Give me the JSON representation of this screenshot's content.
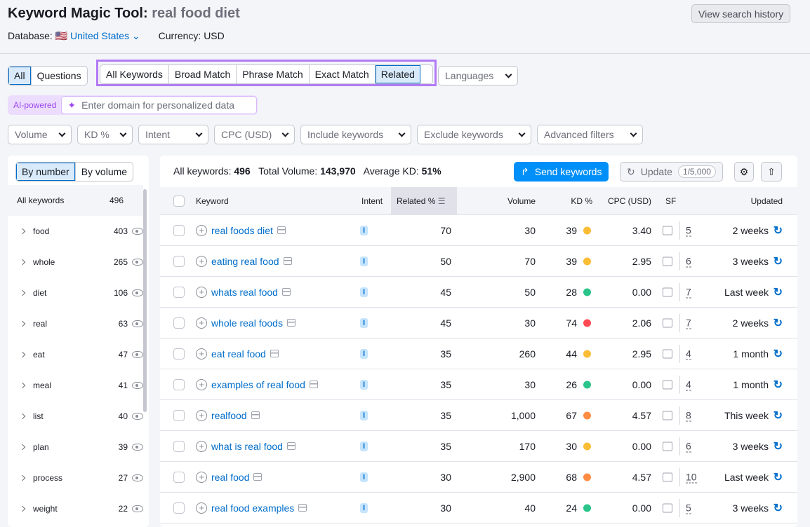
{
  "header": {
    "title": "Keyword Magic Tool:",
    "query": "real food diet",
    "history_button": "View search history",
    "database_label": "Database:",
    "database_value": "United States",
    "currency": "Currency: USD"
  },
  "match_tabs": {
    "scope": [
      "All",
      "Questions"
    ],
    "types": [
      "All Keywords",
      "Broad Match",
      "Phrase Match",
      "Exact Match",
      "Related"
    ],
    "active_scope": "All",
    "active_type": "Related",
    "languages": "Languages"
  },
  "ai": {
    "badge": "AI-powered",
    "placeholder": "Enter domain for personalized data"
  },
  "filters": [
    "Volume",
    "KD %",
    "Intent",
    "CPC (USD)",
    "Include keywords",
    "Exclude keywords",
    "Advanced filters"
  ],
  "sidebar": {
    "toggle": [
      "By number",
      "By volume"
    ],
    "active_toggle": "By number",
    "all_label": "All keywords",
    "all_count": "496",
    "groups": [
      {
        "name": "food",
        "count": "403"
      },
      {
        "name": "whole",
        "count": "265"
      },
      {
        "name": "diet",
        "count": "106"
      },
      {
        "name": "real",
        "count": "63"
      },
      {
        "name": "eat",
        "count": "47"
      },
      {
        "name": "meal",
        "count": "41"
      },
      {
        "name": "list",
        "count": "40"
      },
      {
        "name": "plan",
        "count": "39"
      },
      {
        "name": "process",
        "count": "27"
      },
      {
        "name": "weight",
        "count": "22"
      }
    ]
  },
  "summary": {
    "all_label": "All keywords:",
    "all": "496",
    "volume_label": "Total Volume:",
    "volume": "143,970",
    "kd_label": "Average KD:",
    "kd": "51%"
  },
  "actions": {
    "send": "Send keywords",
    "update": "Update",
    "quota": "1/5,000"
  },
  "columns": [
    "Keyword",
    "Intent",
    "Related %",
    "Volume",
    "KD %",
    "CPC (USD)",
    "SF",
    "Updated"
  ],
  "colors": {
    "easy": "#2bc48a",
    "possible": "#fbbd35",
    "hard": "#ff8c43",
    "very_hard": "#ff4953",
    "accent": "#006dca",
    "highlight": "#b27bf5"
  },
  "rows": [
    {
      "keyword": "real foods diet",
      "intent": "I",
      "related": "70",
      "volume": "30",
      "kd": "39",
      "kd_color": "#fbbd35",
      "cpc": "3.40",
      "sf": "5",
      "updated": "2 weeks"
    },
    {
      "keyword": "eating real food",
      "intent": "I",
      "related": "50",
      "volume": "70",
      "kd": "39",
      "kd_color": "#fbbd35",
      "cpc": "2.95",
      "sf": "6",
      "updated": "3 weeks"
    },
    {
      "keyword": "whats real food",
      "intent": "I",
      "related": "45",
      "volume": "50",
      "kd": "28",
      "kd_color": "#2bc48a",
      "cpc": "0.00",
      "sf": "7",
      "updated": "Last week"
    },
    {
      "keyword": "whole real foods",
      "intent": "I",
      "related": "45",
      "volume": "30",
      "kd": "74",
      "kd_color": "#ff4953",
      "cpc": "2.06",
      "sf": "7",
      "updated": "2 weeks"
    },
    {
      "keyword": "eat real food",
      "intent": "I",
      "related": "35",
      "volume": "260",
      "kd": "44",
      "kd_color": "#fbbd35",
      "cpc": "2.95",
      "sf": "4",
      "updated": "1 month"
    },
    {
      "keyword": "examples of real food",
      "intent": "I",
      "related": "35",
      "volume": "30",
      "kd": "26",
      "kd_color": "#2bc48a",
      "cpc": "0.00",
      "sf": "4",
      "updated": "1 month"
    },
    {
      "keyword": "realfood",
      "intent": "I",
      "related": "35",
      "volume": "1,000",
      "kd": "67",
      "kd_color": "#ff8c43",
      "cpc": "4.57",
      "sf": "8",
      "updated": "This week"
    },
    {
      "keyword": "what is real food",
      "intent": "I",
      "related": "35",
      "volume": "170",
      "kd": "30",
      "kd_color": "#fbbd35",
      "cpc": "0.00",
      "sf": "6",
      "updated": "3 weeks"
    },
    {
      "keyword": "real food",
      "intent": "I",
      "related": "30",
      "volume": "2,900",
      "kd": "68",
      "kd_color": "#ff8c43",
      "cpc": "4.57",
      "sf": "10",
      "updated": "Last week"
    },
    {
      "keyword": "real food examples",
      "intent": "I",
      "related": "30",
      "volume": "40",
      "kd": "24",
      "kd_color": "#2bc48a",
      "cpc": "0.00",
      "sf": "5",
      "updated": "3 weeks"
    }
  ]
}
